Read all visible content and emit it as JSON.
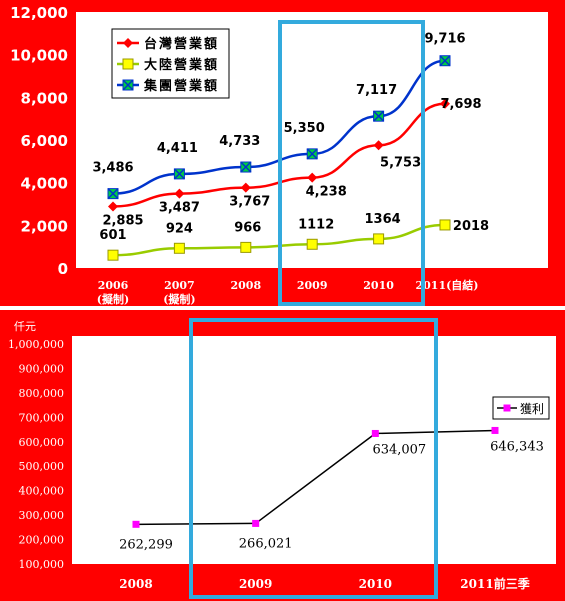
{
  "chart_data": [
    {
      "type": "line",
      "categories": [
        "2006\n(擬制)",
        "2007\n(擬制)",
        "2008",
        "2009",
        "2010",
        "2011(自結)"
      ],
      "series": [
        {
          "name": "台灣營業額",
          "values": [
            2885,
            3487,
            3767,
            4238,
            5753,
            7698
          ],
          "labels": [
            "2,885",
            "3,487",
            "3,767",
            "4,238",
            "5,753",
            "7,698"
          ],
          "color": "#ff0000",
          "marker": "diamond"
        },
        {
          "name": "大陸營業額",
          "values": [
            601,
            924,
            966,
            1112,
            1364,
            2018
          ],
          "labels": [
            "601",
            "924",
            "966",
            "1112",
            "1364",
            "2018"
          ],
          "color": "#99cc00",
          "marker": "square"
        },
        {
          "name": "集團營業額",
          "values": [
            3486,
            4411,
            4733,
            5350,
            7117,
            9716
          ],
          "labels": [
            "3,486",
            "4,411",
            "4,733",
            "5,350",
            "7,117",
            "9,716"
          ],
          "color": "#0033cc",
          "marker": "x-square"
        }
      ],
      "ylim": [
        0,
        12000
      ],
      "yticks": [
        "0",
        "2,000",
        "4,000",
        "6,000",
        "8,000",
        "10,000",
        "12,000"
      ],
      "highlight_category": "2009",
      "colors": {
        "background": "#ff0000",
        "plot": "#ffffff",
        "text": "#ffffff",
        "highlight": "#33aadd"
      }
    },
    {
      "type": "line",
      "unit_label": "仟元",
      "categories": [
        "2008",
        "2009",
        "2010",
        "2011前三季"
      ],
      "series": [
        {
          "name": "獲利",
          "values": [
            262299,
            266021,
            634007,
            646343
          ],
          "labels": [
            "262,299",
            "266,021",
            "634,007",
            "646,343"
          ],
          "color": "#000000",
          "marker_color": "#ff00ff"
        }
      ],
      "ylim": [
        100000,
        1000000
      ],
      "yticks": [
        "100,000",
        "200,000",
        "300,000",
        "400,000",
        "500,000",
        "600,000",
        "700,000",
        "800,000",
        "900,000",
        "1,000,000"
      ],
      "highlight_categories": [
        "2009",
        "2010"
      ],
      "colors": {
        "background": "#ff0000",
        "plot": "#ffffff",
        "text": "#ffffff",
        "highlight": "#33aadd"
      }
    }
  ]
}
